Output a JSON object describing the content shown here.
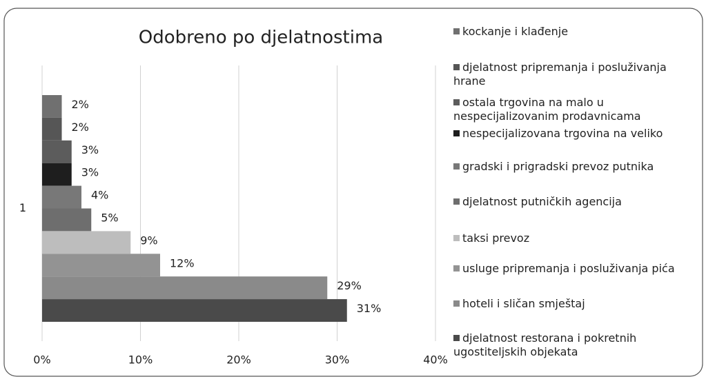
{
  "chart_data": {
    "type": "bar",
    "orientation": "horizontal",
    "title": "Odobreno po djelatnostima",
    "categories": [
      "1"
    ],
    "series": [
      {
        "name": "kockanje i klađenje",
        "color": "#707070",
        "values": [
          2
        ],
        "value_labels": [
          "2%"
        ]
      },
      {
        "name": "djelatnost pripremanja i posluživanja hrane",
        "color": "#565656",
        "values": [
          2
        ],
        "value_labels": [
          "2%"
        ]
      },
      {
        "name": "ostala trgovina na malo u nespecijalizovanim prodavnicama",
        "color": "#5c5c5c",
        "values": [
          3
        ],
        "value_labels": [
          "3%"
        ]
      },
      {
        "name": "nespecijalizovana trgovina na veliko",
        "color": "#1e1e1e",
        "values": [
          3
        ],
        "value_labels": [
          "3%"
        ]
      },
      {
        "name": "gradski i prigradski prevoz putnika",
        "color": "#787878",
        "values": [
          4
        ],
        "value_labels": [
          "4%"
        ]
      },
      {
        "name": "djelatnost putničkih agencija",
        "color": "#6e6e6e",
        "values": [
          5
        ],
        "value_labels": [
          "5%"
        ]
      },
      {
        "name": "taksi prevoz",
        "color": "#bdbdbd",
        "values": [
          9
        ],
        "value_labels": [
          "9%"
        ]
      },
      {
        "name": "usluge pripremanja i posluživanja pića",
        "color": "#939393",
        "values": [
          12
        ],
        "value_labels": [
          "12%"
        ]
      },
      {
        "name": "hoteli i sličan smještaj",
        "color": "#8a8a8a",
        "values": [
          29
        ],
        "value_labels": [
          "29%"
        ]
      },
      {
        "name": "djelatnost restorana i pokretnih ugostiteljskih objekata",
        "color": "#4a4a4a",
        "values": [
          31
        ],
        "value_labels": [
          "31%"
        ]
      }
    ],
    "xlim": [
      0,
      40
    ],
    "xticks": [
      {
        "value": 0,
        "label": "0%"
      },
      {
        "value": 10,
        "label": "10%"
      },
      {
        "value": 20,
        "label": "20%"
      },
      {
        "value": 30,
        "label": "30%"
      },
      {
        "value": 40,
        "label": "40%"
      }
    ],
    "grid": true,
    "legend": "right"
  }
}
